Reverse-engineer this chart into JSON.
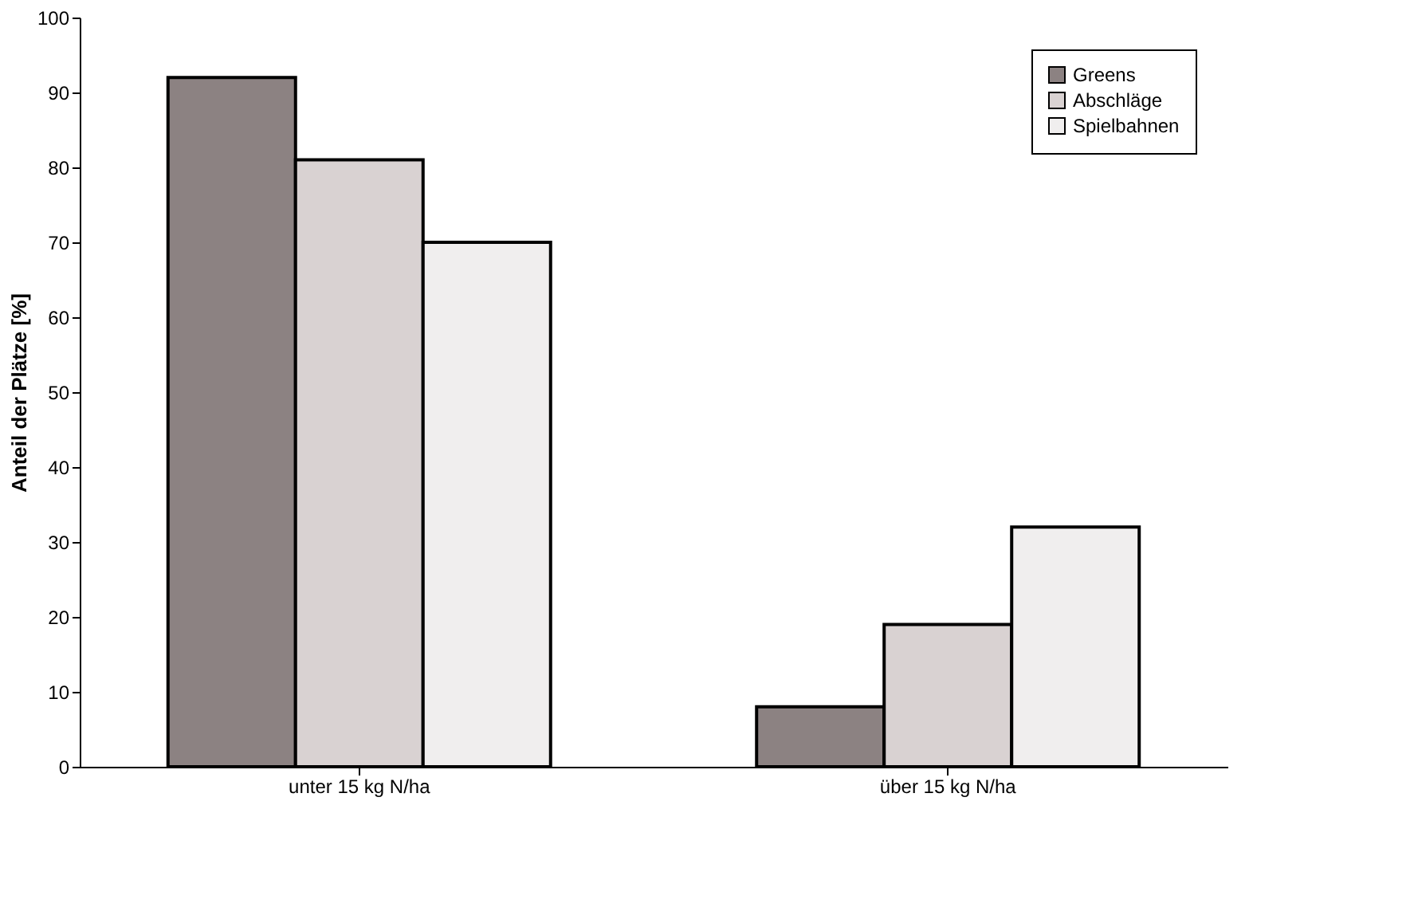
{
  "chart_data": {
    "type": "bar",
    "ylabel": "Anteil der Plätze [%]",
    "categories": [
      "unter 15 kg N/ha",
      "über 15 kg N/ha"
    ],
    "series": [
      {
        "name": "Greens",
        "color": "#8c8282",
        "values": [
          92,
          8
        ]
      },
      {
        "name": "Abschläge",
        "color": "#d9d2d2",
        "values": [
          81,
          19
        ]
      },
      {
        "name": "Spielbahnen",
        "color": "#f0eeee",
        "values": [
          70,
          32
        ]
      }
    ],
    "ylim": [
      0,
      100
    ],
    "yticks": [
      0,
      10,
      20,
      30,
      40,
      50,
      60,
      70,
      80,
      90,
      100
    ],
    "grid": false,
    "legend": "top right"
  }
}
